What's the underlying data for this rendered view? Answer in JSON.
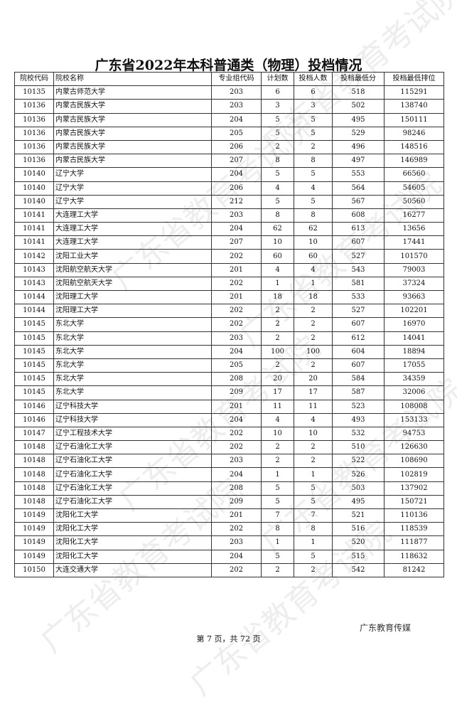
{
  "header": {
    "title": "广东省2022年本科普通类（物理）投档情况"
  },
  "table": {
    "columns": [
      "院校代码",
      "院校名称",
      "专业组代码",
      "计划数",
      "投档人数",
      "投档最低分",
      "投档最低排位"
    ],
    "rows": [
      [
        "10135",
        "内蒙古师范大学",
        "203",
        6,
        6,
        518,
        115291
      ],
      [
        "10136",
        "内蒙古民族大学",
        "203",
        3,
        3,
        502,
        138740
      ],
      [
        "10136",
        "内蒙古民族大学",
        "204",
        5,
        5,
        495,
        150111
      ],
      [
        "10136",
        "内蒙古民族大学",
        "205",
        5,
        5,
        529,
        98246
      ],
      [
        "10136",
        "内蒙古民族大学",
        "206",
        2,
        2,
        496,
        148516
      ],
      [
        "10136",
        "内蒙古民族大学",
        "207",
        8,
        8,
        497,
        146989
      ],
      [
        "10140",
        "辽宁大学",
        "204",
        5,
        5,
        553,
        66560
      ],
      [
        "10140",
        "辽宁大学",
        "206",
        4,
        4,
        564,
        54605
      ],
      [
        "10140",
        "辽宁大学",
        "212",
        5,
        5,
        567,
        50560
      ],
      [
        "10141",
        "大连理工大学",
        "203",
        8,
        8,
        608,
        16277
      ],
      [
        "10141",
        "大连理工大学",
        "204",
        62,
        62,
        613,
        13656
      ],
      [
        "10141",
        "大连理工大学",
        "207",
        10,
        10,
        607,
        17441
      ],
      [
        "10142",
        "沈阳工业大学",
        "202",
        60,
        60,
        527,
        101570
      ],
      [
        "10143",
        "沈阳航空航天大学",
        "201",
        4,
        4,
        543,
        79003
      ],
      [
        "10143",
        "沈阳航空航天大学",
        "202",
        1,
        1,
        581,
        37324
      ],
      [
        "10144",
        "沈阳理工大学",
        "201",
        18,
        18,
        533,
        93663
      ],
      [
        "10144",
        "沈阳理工大学",
        "202",
        2,
        2,
        527,
        102201
      ],
      [
        "10145",
        "东北大学",
        "202",
        2,
        2,
        607,
        16970
      ],
      [
        "10145",
        "东北大学",
        "203",
        2,
        2,
        612,
        14041
      ],
      [
        "10145",
        "东北大学",
        "204",
        100,
        100,
        604,
        18894
      ],
      [
        "10145",
        "东北大学",
        "205",
        2,
        2,
        607,
        17055
      ],
      [
        "10145",
        "东北大学",
        "208",
        20,
        20,
        584,
        34359
      ],
      [
        "10145",
        "东北大学",
        "209",
        17,
        17,
        587,
        32006
      ],
      [
        "10146",
        "辽宁科技大学",
        "201",
        11,
        11,
        523,
        108008
      ],
      [
        "10146",
        "辽宁科技大学",
        "204",
        4,
        4,
        493,
        153133
      ],
      [
        "10147",
        "辽宁工程技术大学",
        "202",
        10,
        10,
        532,
        94753
      ],
      [
        "10148",
        "辽宁石油化工大学",
        "202",
        2,
        2,
        510,
        126630
      ],
      [
        "10148",
        "辽宁石油化工大学",
        "203",
        2,
        2,
        522,
        108690
      ],
      [
        "10148",
        "辽宁石油化工大学",
        "204",
        1,
        1,
        526,
        102819
      ],
      [
        "10148",
        "辽宁石油化工大学",
        "208",
        5,
        5,
        503,
        137902
      ],
      [
        "10148",
        "辽宁石油化工大学",
        "209",
        5,
        5,
        495,
        150721
      ],
      [
        "10149",
        "沈阳化工大学",
        "201",
        7,
        7,
        521,
        110136
      ],
      [
        "10149",
        "沈阳化工大学",
        "202",
        8,
        8,
        516,
        118539
      ],
      [
        "10149",
        "沈阳化工大学",
        "203",
        1,
        1,
        520,
        111877
      ],
      [
        "10149",
        "沈阳化工大学",
        "204",
        5,
        5,
        515,
        118632
      ],
      [
        "10150",
        "大连交通大学",
        "202",
        2,
        2,
        542,
        81242
      ]
    ]
  },
  "footer": {
    "page": "第 7 页，共 72 页",
    "brand": "广东教育传媒"
  },
  "watermark": "广东省教育考试院"
}
